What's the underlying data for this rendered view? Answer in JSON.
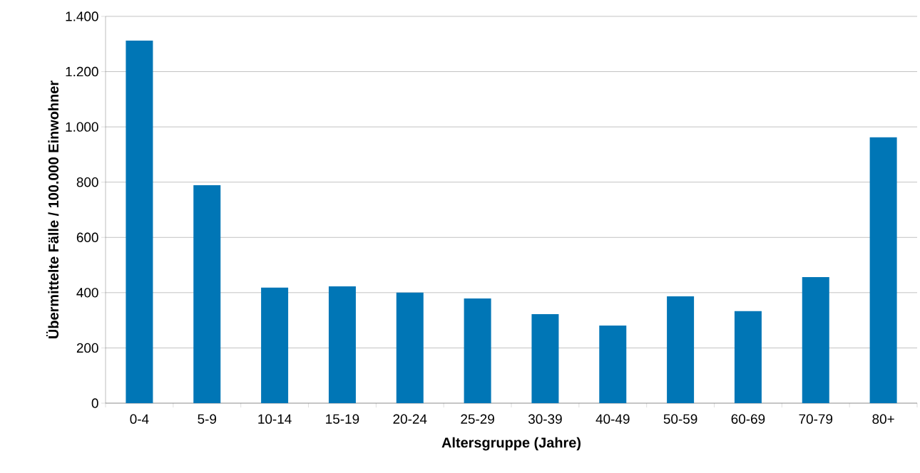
{
  "chart_data": {
    "type": "bar",
    "xlabel": "Altersgruppe (Jahre)",
    "ylabel": "Übermittelte Fälle  / 100.000 Einwohner",
    "categories": [
      "0-4",
      "5-9",
      "10-14",
      "15-19",
      "20-24",
      "25-29",
      "30-39",
      "40-49",
      "50-59",
      "60-69",
      "70-79",
      "80+"
    ],
    "values": [
      1312,
      789,
      418,
      423,
      400,
      379,
      322,
      281,
      387,
      333,
      456,
      962
    ],
    "color": "#0076b6",
    "ylim": [
      0,
      1400
    ],
    "yticks": [
      0,
      200,
      400,
      600,
      800,
      {
        "value": 1000,
        "label": "1.000"
      },
      {
        "value": 1200,
        "label": "1.200"
      },
      {
        "value": 1400,
        "label": "1.400"
      }
    ],
    "grid": "y"
  }
}
